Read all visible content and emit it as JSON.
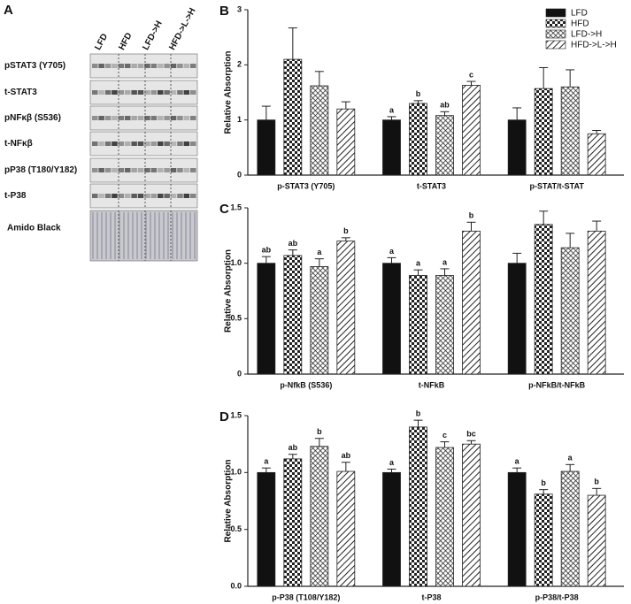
{
  "blot": {
    "panel": "A",
    "lanes": [
      "LFD",
      "HFD",
      "LFD->H",
      "HFD->L->H"
    ],
    "rows": [
      "pSTAT3 (Y705)",
      "t-STAT3",
      "pNFκβ (S536)",
      "t-NFκβ",
      "pP38 (T180/Y182)",
      "t-P38",
      "Amido Black"
    ]
  },
  "chart_data": [
    {
      "type": "bar",
      "panel": "B",
      "y_label": "Relative Absorption",
      "categories": [
        "p-STAT3 (Y705)",
        "t-STAT3",
        "p-STAT/t-STAT"
      ],
      "ylim": [
        0,
        3
      ],
      "yticks": [
        0,
        1,
        2,
        3
      ],
      "legend": "top-right",
      "series": [
        {
          "name": "LFD",
          "color": "#111111",
          "pattern": "solid",
          "values": [
            1.0,
            1.0,
            1.0
          ],
          "errors": [
            0.25,
            0.06,
            0.22
          ],
          "annotations": [
            null,
            "a",
            null
          ]
        },
        {
          "name": "HFD",
          "color": "#111111",
          "pattern": "checker",
          "values": [
            2.1,
            1.3,
            1.57
          ],
          "errors": [
            0.57,
            0.05,
            0.38
          ],
          "annotations": [
            null,
            "b",
            null
          ]
        },
        {
          "name": "LFD->H",
          "color": "#111111",
          "pattern": "grid",
          "values": [
            1.62,
            1.08,
            1.6
          ],
          "errors": [
            0.26,
            0.07,
            0.31
          ],
          "annotations": [
            null,
            "ab",
            null
          ]
        },
        {
          "name": "HFD->L->H",
          "color": "#111111",
          "pattern": "diagonal",
          "values": [
            1.2,
            1.63,
            0.75
          ],
          "errors": [
            0.13,
            0.07,
            0.06
          ],
          "annotations": [
            null,
            "c",
            null
          ]
        }
      ]
    },
    {
      "type": "bar",
      "panel": "C",
      "y_label": "Relative Absorption",
      "categories": [
        "p-NfkB (S536)",
        "t-NFkB",
        "p-NFkB/t-NFkB"
      ],
      "ylim": [
        0,
        1.5
      ],
      "yticks": [
        0,
        0.5,
        {
          "value": 1,
          "label": "1.0"
        },
        1.5
      ],
      "series": [
        {
          "color": "#111111",
          "pattern": "solid",
          "values": [
            1.0,
            1.0,
            1.0
          ],
          "errors": [
            0.06,
            0.05,
            0.09
          ],
          "annotations": [
            "ab",
            "a",
            null
          ]
        },
        {
          "color": "#111111",
          "pattern": "checker",
          "values": [
            1.07,
            0.89,
            1.35
          ],
          "errors": [
            0.05,
            0.05,
            0.12
          ],
          "annotations": [
            "ab",
            "a",
            null
          ]
        },
        {
          "color": "#111111",
          "pattern": "grid",
          "values": [
            0.97,
            0.89,
            1.14
          ],
          "errors": [
            0.07,
            0.06,
            0.13
          ],
          "annotations": [
            "a",
            "a",
            null
          ]
        },
        {
          "color": "#111111",
          "pattern": "diagonal",
          "values": [
            1.2,
            1.29,
            1.29
          ],
          "errors": [
            0.03,
            0.08,
            0.09
          ],
          "annotations": [
            "b",
            "b",
            null
          ]
        }
      ]
    },
    {
      "type": "bar",
      "panel": "D",
      "y_label": "Relative Absorption",
      "categories": [
        "p-P38 (T108/Y182)",
        "t-P38",
        "p-P38/t-P38"
      ],
      "ylim": [
        0,
        1.5
      ],
      "yticks": [
        {
          "value": 0,
          "label": "0.0"
        },
        0.5,
        {
          "value": 1,
          "label": "1.0"
        },
        1.5
      ],
      "series": [
        {
          "color": "#111111",
          "pattern": "solid",
          "values": [
            1.0,
            1.0,
            1.0
          ],
          "errors": [
            0.04,
            0.03,
            0.04
          ],
          "annotations": [
            "a",
            "a",
            "a"
          ]
        },
        {
          "color": "#111111",
          "pattern": "checker",
          "values": [
            1.12,
            1.4,
            0.81
          ],
          "errors": [
            0.04,
            0.06,
            0.04
          ],
          "annotations": [
            "ab",
            "b",
            "b"
          ]
        },
        {
          "color": "#111111",
          "pattern": "grid",
          "values": [
            1.23,
            1.22,
            1.01
          ],
          "errors": [
            0.07,
            0.05,
            0.06
          ],
          "annotations": [
            "b",
            "c",
            "a"
          ]
        },
        {
          "color": "#111111",
          "pattern": "diagonal",
          "values": [
            1.01,
            1.25,
            0.8
          ],
          "errors": [
            0.08,
            0.03,
            0.06
          ],
          "annotations": [
            "ab",
            "bc",
            "b"
          ]
        }
      ]
    }
  ]
}
